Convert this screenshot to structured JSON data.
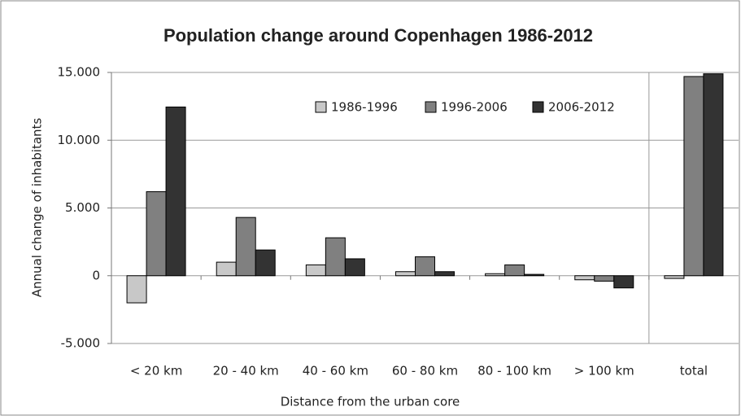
{
  "chart_data": {
    "type": "bar",
    "title": "Population change around Copenhagen 1986-2012",
    "x_label": "Distance from the urban core",
    "y_label": "Annual change of inhabitants",
    "categories": [
      "< 20 km",
      "20 - 40 km",
      "40 - 60 km",
      "60 - 80 km",
      "80 - 100 km",
      "> 100 km",
      "total"
    ],
    "series": [
      {
        "name": "1986-1996",
        "color": "#c8c8c8",
        "values": [
          -2000,
          1000,
          800,
          300,
          150,
          -300,
          -200
        ]
      },
      {
        "name": "1996-2006",
        "color": "#808080",
        "values": [
          6200,
          4300,
          2800,
          1400,
          800,
          -400,
          14700
        ]
      },
      {
        "name": "2006-2012",
        "color": "#333333",
        "values": [
          12450,
          1900,
          1250,
          300,
          100,
          -900,
          14900
        ]
      }
    ],
    "ylim": [
      -5000,
      15000
    ],
    "yticks": [
      {
        "value": -5000,
        "label": "-5.000"
      },
      0,
      {
        "value": 5000,
        "label": "5.000"
      },
      {
        "value": 10000,
        "label": "10.000"
      },
      {
        "value": 15000,
        "label": "15.000"
      }
    ],
    "grid": true,
    "legend": "top"
  }
}
